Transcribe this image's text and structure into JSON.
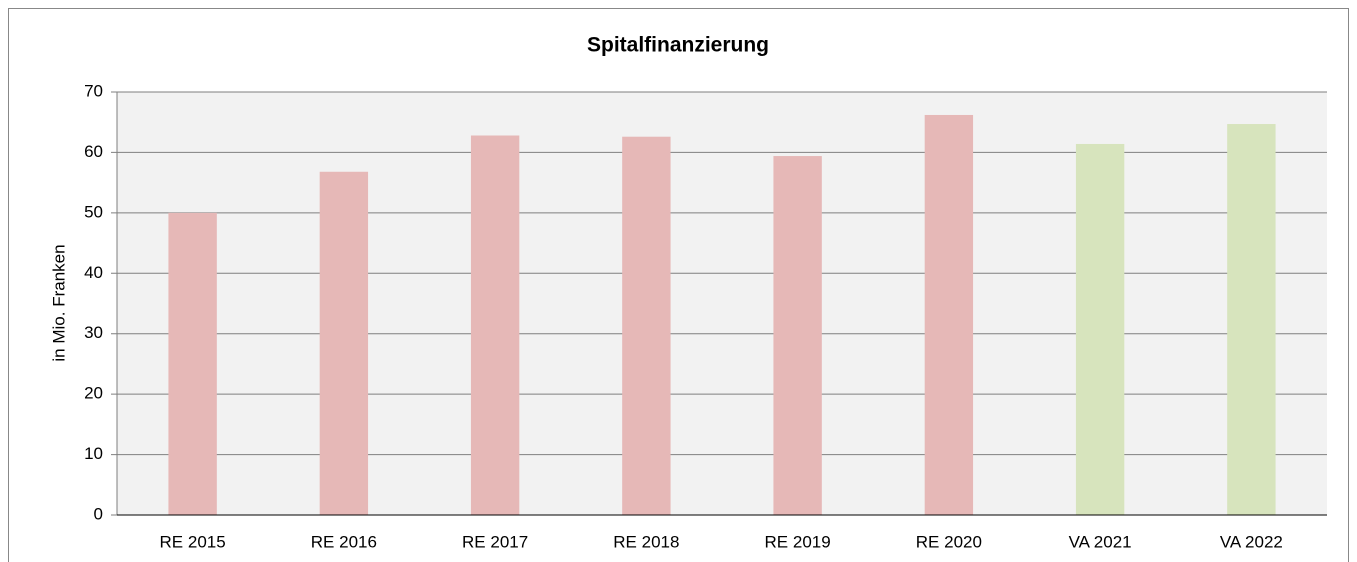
{
  "chart_data": {
    "type": "bar",
    "title": "Spitalfinanzierung",
    "y_label": "in Mio. Franken",
    "categories": [
      "RE 2015",
      "RE 2016",
      "RE 2017",
      "RE 2018",
      "RE 2019",
      "RE 2020",
      "VA 2021",
      "VA 2022"
    ],
    "values": [
      50,
      56.8,
      62.8,
      62.6,
      59.4,
      66.2,
      61.4,
      64.7
    ],
    "colors": [
      "#e6b8b7",
      "#e6b8b7",
      "#e6b8b7",
      "#e6b8b7",
      "#e6b8b7",
      "#e6b8b7",
      "#d7e4bd",
      "#d7e4bd"
    ],
    "ylim": [
      0,
      70
    ],
    "yticks": [
      0,
      10,
      20,
      30,
      40,
      50,
      60,
      70
    ],
    "grid": true
  }
}
